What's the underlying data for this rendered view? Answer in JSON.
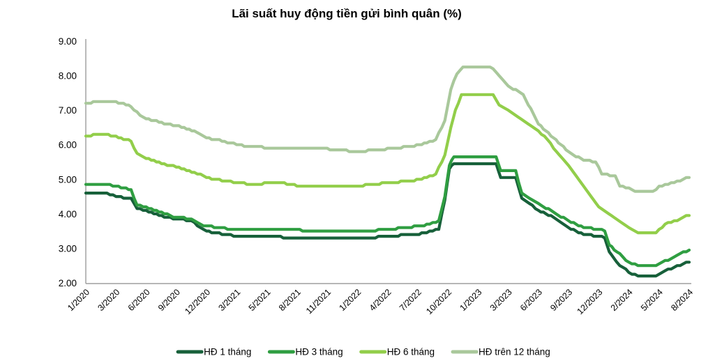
{
  "chart_data": {
    "type": "line",
    "title": "Lãi suất huy động tiền gửi bình quân (%)",
    "x_unit": "tick_index (0 = 1/2020 ... 20 = 8/2024, weekly stepped data)",
    "x_tick_labels": [
      "1/2020",
      "3/2020",
      "6/2020",
      "9/2020",
      "12/2020",
      "3/2021",
      "5/2021",
      "8/2021",
      "11/2021",
      "1/2022",
      "4/2022",
      "7/2022",
      "10/2022",
      "1/2023",
      "3/2023",
      "6/2023",
      "9/2023",
      "12/2023",
      "2/2024",
      "5/2024",
      "8/2024"
    ],
    "y_tick_labels": [
      "2.00",
      "3.00",
      "4.00",
      "5.00",
      "6.00",
      "7.00",
      "8.00",
      "9.00"
    ],
    "ylim": [
      2,
      9
    ],
    "grid": false,
    "legend_position": "bottom",
    "line_style": "staircase (rates change in 0.05 steps)",
    "series": [
      {
        "name": "HĐ 1 tháng",
        "color": "#17603a",
        "points": [
          [
            0,
            4.6
          ],
          [
            0.7,
            4.6
          ],
          [
            1,
            4.5
          ],
          [
            1.5,
            4.45
          ],
          [
            1.7,
            4.15
          ],
          [
            2,
            4.1
          ],
          [
            2.6,
            3.9
          ],
          [
            3,
            3.85
          ],
          [
            3.5,
            3.8
          ],
          [
            3.8,
            3.6
          ],
          [
            4,
            3.5
          ],
          [
            4.6,
            3.4
          ],
          [
            5,
            3.35
          ],
          [
            6,
            3.33
          ],
          [
            7,
            3.32
          ],
          [
            8,
            3.3
          ],
          [
            9,
            3.3
          ],
          [
            9.6,
            3.32
          ],
          [
            10,
            3.35
          ],
          [
            10.8,
            3.4
          ],
          [
            11.3,
            3.45
          ],
          [
            11.7,
            3.55
          ],
          [
            11.9,
            4.4
          ],
          [
            12.05,
            5.3
          ],
          [
            12.2,
            5.45
          ],
          [
            13.6,
            5.45
          ],
          [
            13.75,
            5.05
          ],
          [
            14.25,
            5.05
          ],
          [
            14.45,
            4.45
          ],
          [
            14.7,
            4.3
          ],
          [
            15,
            4.1
          ],
          [
            15.5,
            3.9
          ],
          [
            16,
            3.6
          ],
          [
            16.5,
            3.4
          ],
          [
            17,
            3.35
          ],
          [
            17.2,
            3.3
          ],
          [
            17.35,
            2.9
          ],
          [
            17.6,
            2.6
          ],
          [
            18,
            2.3
          ],
          [
            18.3,
            2.2
          ],
          [
            18.9,
            2.2
          ],
          [
            19.1,
            2.3
          ],
          [
            19.5,
            2.45
          ],
          [
            19.8,
            2.55
          ],
          [
            20,
            2.6
          ]
        ]
      },
      {
        "name": "HĐ 3 tháng",
        "color": "#2f9e41",
        "points": [
          [
            0,
            4.85
          ],
          [
            0.7,
            4.85
          ],
          [
            1,
            4.8
          ],
          [
            1.5,
            4.7
          ],
          [
            1.7,
            4.25
          ],
          [
            2,
            4.2
          ],
          [
            2.6,
            4.0
          ],
          [
            3,
            3.9
          ],
          [
            3.5,
            3.85
          ],
          [
            3.8,
            3.7
          ],
          [
            4,
            3.65
          ],
          [
            4.6,
            3.58
          ],
          [
            5,
            3.55
          ],
          [
            6,
            3.55
          ],
          [
            7,
            3.53
          ],
          [
            8,
            3.5
          ],
          [
            9,
            3.5
          ],
          [
            9.6,
            3.52
          ],
          [
            10,
            3.55
          ],
          [
            10.8,
            3.62
          ],
          [
            11.3,
            3.68
          ],
          [
            11.7,
            3.8
          ],
          [
            11.9,
            4.5
          ],
          [
            12.05,
            5.4
          ],
          [
            12.2,
            5.65
          ],
          [
            13.6,
            5.65
          ],
          [
            13.75,
            5.25
          ],
          [
            14.25,
            5.25
          ],
          [
            14.45,
            4.6
          ],
          [
            14.7,
            4.45
          ],
          [
            15,
            4.3
          ],
          [
            15.5,
            4.05
          ],
          [
            16,
            3.8
          ],
          [
            16.5,
            3.6
          ],
          [
            17,
            3.55
          ],
          [
            17.2,
            3.5
          ],
          [
            17.35,
            3.1
          ],
          [
            17.6,
            2.9
          ],
          [
            18,
            2.6
          ],
          [
            18.3,
            2.5
          ],
          [
            18.9,
            2.5
          ],
          [
            19.1,
            2.6
          ],
          [
            19.5,
            2.75
          ],
          [
            19.8,
            2.9
          ],
          [
            20,
            2.95
          ]
        ]
      },
      {
        "name": "HĐ 6 tháng",
        "color": "#92ce4a",
        "points": [
          [
            0,
            6.25
          ],
          [
            0.5,
            6.3
          ],
          [
            1,
            6.25
          ],
          [
            1.5,
            6.1
          ],
          [
            1.7,
            5.75
          ],
          [
            2,
            5.6
          ],
          [
            2.6,
            5.45
          ],
          [
            3,
            5.35
          ],
          [
            3.6,
            5.2
          ],
          [
            4,
            5.05
          ],
          [
            4.6,
            4.95
          ],
          [
            5,
            4.9
          ],
          [
            5.5,
            4.85
          ],
          [
            6,
            4.88
          ],
          [
            6.5,
            4.9
          ],
          [
            7,
            4.82
          ],
          [
            8,
            4.8
          ],
          [
            9,
            4.8
          ],
          [
            10,
            4.9
          ],
          [
            10.8,
            4.95
          ],
          [
            11.3,
            5.05
          ],
          [
            11.6,
            5.15
          ],
          [
            11.9,
            5.7
          ],
          [
            12.1,
            6.5
          ],
          [
            12.25,
            7.0
          ],
          [
            12.45,
            7.45
          ],
          [
            13.5,
            7.45
          ],
          [
            13.7,
            7.15
          ],
          [
            14,
            7.0
          ],
          [
            14.5,
            6.7
          ],
          [
            15,
            6.4
          ],
          [
            15.3,
            6.15
          ],
          [
            15.6,
            5.8
          ],
          [
            16,
            5.4
          ],
          [
            16.5,
            4.8
          ],
          [
            17,
            4.2
          ],
          [
            17.5,
            3.9
          ],
          [
            18,
            3.6
          ],
          [
            18.3,
            3.45
          ],
          [
            18.9,
            3.45
          ],
          [
            19.2,
            3.7
          ],
          [
            19.6,
            3.8
          ],
          [
            19.9,
            3.95
          ],
          [
            20,
            3.95
          ]
        ]
      },
      {
        "name": "HĐ trên 12 tháng",
        "color": "#a9c89b",
        "points": [
          [
            0,
            7.2
          ],
          [
            0.5,
            7.27
          ],
          [
            1,
            7.25
          ],
          [
            1.5,
            7.1
          ],
          [
            1.8,
            6.85
          ],
          [
            2,
            6.75
          ],
          [
            2.6,
            6.62
          ],
          [
            3,
            6.55
          ],
          [
            3.6,
            6.4
          ],
          [
            4,
            6.2
          ],
          [
            4.6,
            6.1
          ],
          [
            5,
            6.0
          ],
          [
            5.5,
            5.95
          ],
          [
            6,
            5.92
          ],
          [
            7,
            5.9
          ],
          [
            8,
            5.88
          ],
          [
            9,
            5.8
          ],
          [
            10,
            5.88
          ],
          [
            10.8,
            5.95
          ],
          [
            11.3,
            6.05
          ],
          [
            11.6,
            6.15
          ],
          [
            11.9,
            6.7
          ],
          [
            12.1,
            7.6
          ],
          [
            12.3,
            8.05
          ],
          [
            12.5,
            8.25
          ],
          [
            13.4,
            8.25
          ],
          [
            13.6,
            8.1
          ],
          [
            14,
            7.7
          ],
          [
            14.5,
            7.45
          ],
          [
            15,
            6.6
          ],
          [
            15.5,
            6.2
          ],
          [
            16,
            5.8
          ],
          [
            16.5,
            5.55
          ],
          [
            16.9,
            5.5
          ],
          [
            17.1,
            5.15
          ],
          [
            17.55,
            5.1
          ],
          [
            17.7,
            4.8
          ],
          [
            18,
            4.75
          ],
          [
            18.2,
            4.65
          ],
          [
            18.8,
            4.65
          ],
          [
            19,
            4.8
          ],
          [
            19.3,
            4.85
          ],
          [
            19.6,
            4.95
          ],
          [
            20,
            5.05
          ]
        ]
      }
    ]
  },
  "colors": {
    "axis_line": "#9d9d9d",
    "text": "#000000",
    "background": "#ffffff"
  }
}
